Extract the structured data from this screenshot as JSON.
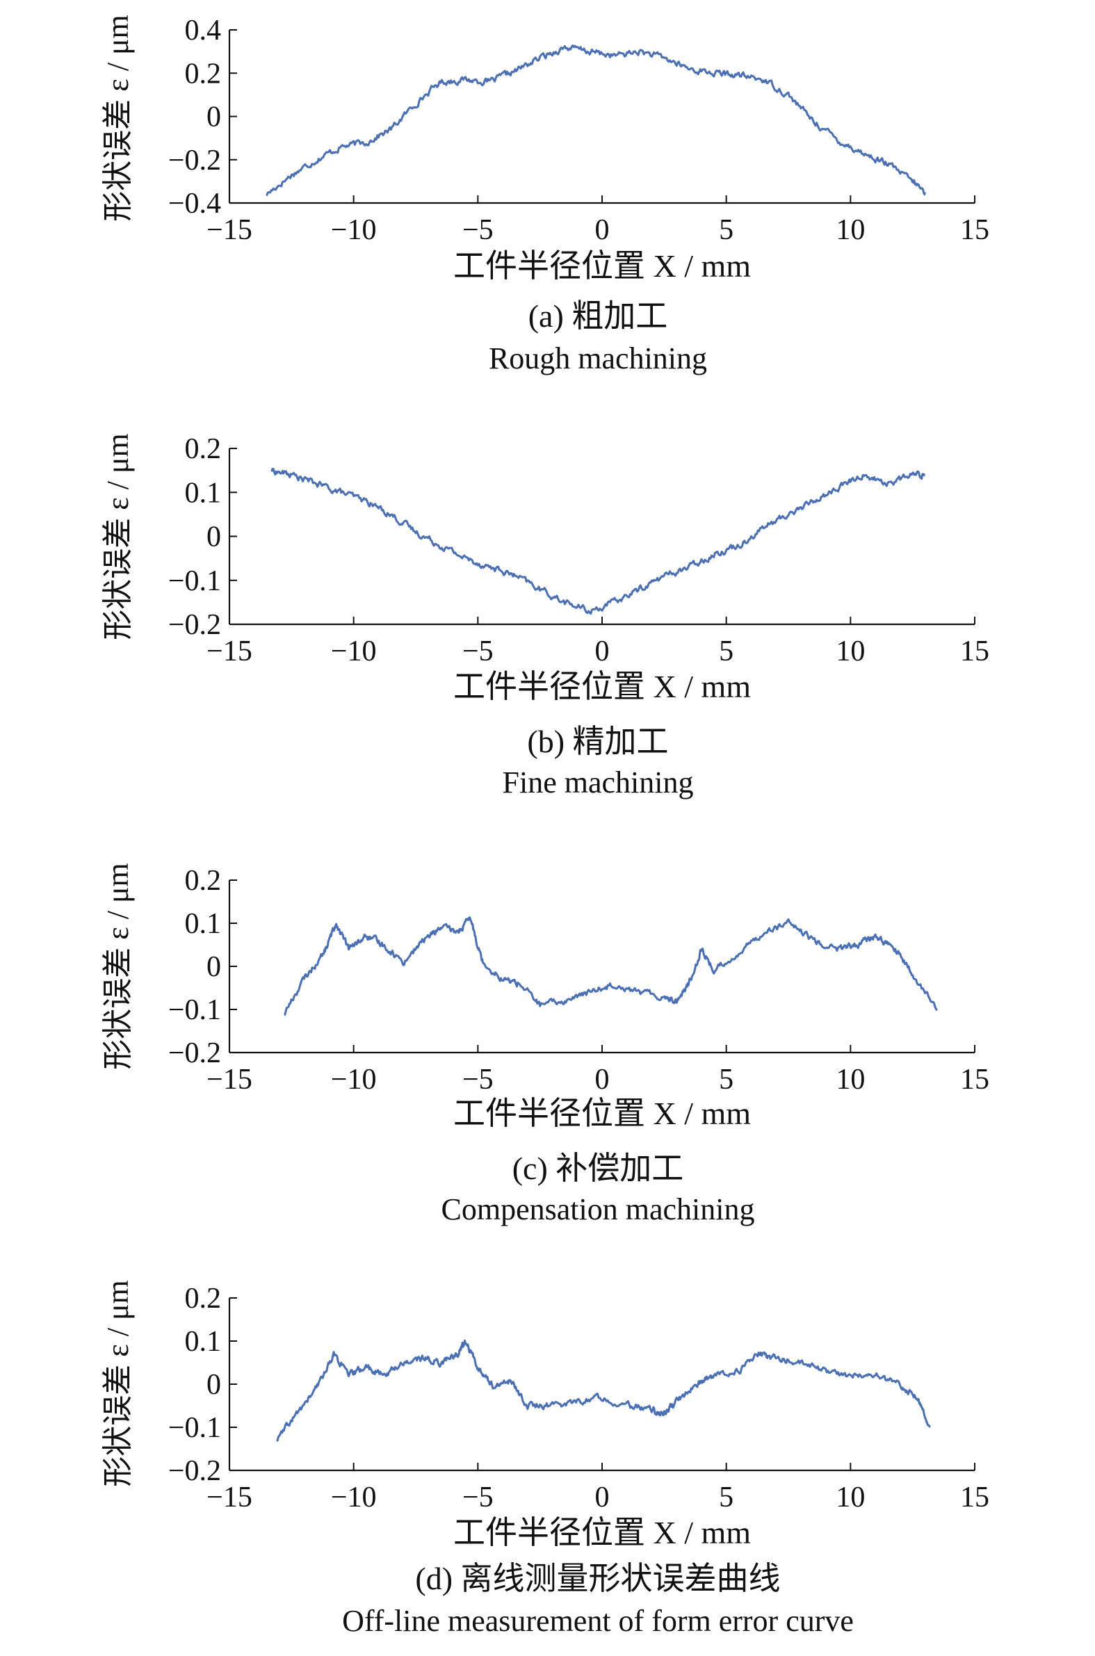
{
  "chart_data": [
    {
      "type": "line",
      "caption_cn": "(a) 粗加工",
      "caption_en": "Rough machining",
      "xlabel": "工件半径位置 X / mm",
      "ylabel": "形状误差 ε / μm",
      "xlim": [
        -15,
        15
      ],
      "ylim": [
        -0.4,
        0.4
      ],
      "xticks": [
        "−15",
        "−10",
        "−5",
        "0",
        "5",
        "10",
        "15"
      ],
      "yticks": [
        "−0.4",
        "−0.2",
        "0",
        "0.2",
        "0.4"
      ],
      "x": [
        -13.5,
        -12.5,
        -11.5,
        -10.5,
        -9.5,
        -8.5,
        -7.5,
        -6.5,
        -5.5,
        -4.5,
        -3.5,
        -2.5,
        -1.5,
        -0.5,
        0.5,
        1.5,
        2.5,
        3.5,
        4.5,
        5.5,
        6.5,
        7.5,
        8.5,
        9.5,
        10.5,
        11.5,
        12.5,
        13.0
      ],
      "y": [
        -0.36,
        -0.27,
        -0.2,
        -0.14,
        -0.12,
        -0.06,
        0.06,
        0.16,
        0.17,
        0.16,
        0.21,
        0.27,
        0.32,
        0.3,
        0.28,
        0.3,
        0.27,
        0.22,
        0.2,
        0.19,
        0.17,
        0.1,
        -0.02,
        -0.11,
        -0.17,
        -0.22,
        -0.3,
        -0.35
      ]
    },
    {
      "type": "line",
      "caption_cn": "(b) 精加工",
      "caption_en": "Fine machining",
      "xlabel": "工件半径位置 X / mm",
      "ylabel": "形状误差 ε / μm",
      "xlim": [
        -15,
        15
      ],
      "ylim": [
        -0.2,
        0.2
      ],
      "xticks": [
        "−15",
        "−10",
        "−5",
        "0",
        "5",
        "10",
        "15"
      ],
      "yticks": [
        "−0.2",
        "−0.1",
        "0",
        "0.1",
        "0.2"
      ],
      "x": [
        -13.3,
        -12.5,
        -11.5,
        -10.5,
        -9.5,
        -8.5,
        -7.5,
        -6.5,
        -5.5,
        -4.5,
        -3.5,
        -2.5,
        -1.5,
        -0.5,
        0.5,
        1.5,
        2.5,
        3.5,
        4.5,
        5.5,
        6.5,
        7.5,
        8.5,
        9.5,
        10.5,
        11.5,
        12.5,
        13.0
      ],
      "y": [
        0.15,
        0.14,
        0.12,
        0.1,
        0.08,
        0.05,
        0.01,
        -0.02,
        -0.05,
        -0.07,
        -0.09,
        -0.12,
        -0.15,
        -0.17,
        -0.15,
        -0.12,
        -0.09,
        -0.07,
        -0.04,
        -0.02,
        0.02,
        0.05,
        0.08,
        0.11,
        0.14,
        0.12,
        0.14,
        0.14
      ]
    },
    {
      "type": "line",
      "caption_cn": "(c) 补偿加工",
      "caption_en": "Compensation machining",
      "xlabel": "工件半径位置 X / mm",
      "ylabel": "形状误差 ε / μm",
      "xlim": [
        -15,
        15
      ],
      "ylim": [
        -0.2,
        0.2
      ],
      "xticks": [
        "−15",
        "−10",
        "−5",
        "0",
        "5",
        "10",
        "15"
      ],
      "yticks": [
        "−0.2",
        "−0.1",
        "0",
        "0.1",
        "0.2"
      ],
      "x": [
        -12.8,
        -12.0,
        -11.2,
        -10.7,
        -10.2,
        -9.5,
        -8.8,
        -8.0,
        -7.2,
        -6.5,
        -5.8,
        -5.3,
        -4.8,
        -4.0,
        -3.3,
        -2.5,
        -1.5,
        -0.5,
        0.5,
        1.5,
        2.5,
        3.0,
        3.5,
        4.0,
        4.5,
        5.5,
        6.5,
        7.5,
        8.5,
        9.5,
        10.3,
        11.0,
        11.8,
        12.5,
        13.5
      ],
      "y": [
        -0.11,
        -0.03,
        0.03,
        0.1,
        0.04,
        0.07,
        0.05,
        0.01,
        0.06,
        0.09,
        0.08,
        0.11,
        0.01,
        -0.03,
        -0.04,
        -0.09,
        -0.08,
        -0.06,
        -0.04,
        -0.06,
        -0.07,
        -0.08,
        -0.04,
        0.04,
        -0.01,
        0.03,
        0.08,
        0.1,
        0.06,
        0.04,
        0.05,
        0.07,
        0.04,
        -0.02,
        -0.1
      ]
    },
    {
      "type": "line",
      "caption_cn": "(d) 离线测量形状误差曲线",
      "caption_en": "Off-line measurement of form error curve",
      "xlabel": "工件半径位置 X / mm",
      "ylabel": "形状误差 ε / μm",
      "xlim": [
        -15,
        15
      ],
      "ylim": [
        -0.2,
        0.2
      ],
      "xticks": [
        "−15",
        "−10",
        "−5",
        "0",
        "5",
        "10",
        "15"
      ],
      "yticks": [
        "−0.2",
        "−0.1",
        "0",
        "0.1",
        "0.2"
      ],
      "x": [
        -13.1,
        -12.3,
        -11.5,
        -10.8,
        -10.2,
        -9.5,
        -8.8,
        -8.0,
        -7.2,
        -6.5,
        -5.8,
        -5.5,
        -5.0,
        -4.3,
        -3.7,
        -3.0,
        -2.0,
        -1.0,
        0.0,
        1.0,
        2.0,
        2.5,
        3.0,
        3.8,
        4.5,
        5.5,
        6.3,
        7.0,
        8.0,
        9.0,
        10.0,
        11.0,
        12.0,
        12.7,
        13.2
      ],
      "y": [
        -0.13,
        -0.07,
        -0.01,
        0.07,
        0.02,
        0.04,
        0.02,
        0.05,
        0.06,
        0.05,
        0.07,
        0.1,
        0.04,
        -0.01,
        0.01,
        -0.05,
        -0.05,
        -0.04,
        -0.03,
        -0.05,
        -0.06,
        -0.07,
        -0.04,
        0.0,
        0.02,
        0.03,
        0.07,
        0.06,
        0.05,
        0.03,
        0.02,
        0.02,
        0.0,
        -0.03,
        -0.1
      ]
    }
  ]
}
